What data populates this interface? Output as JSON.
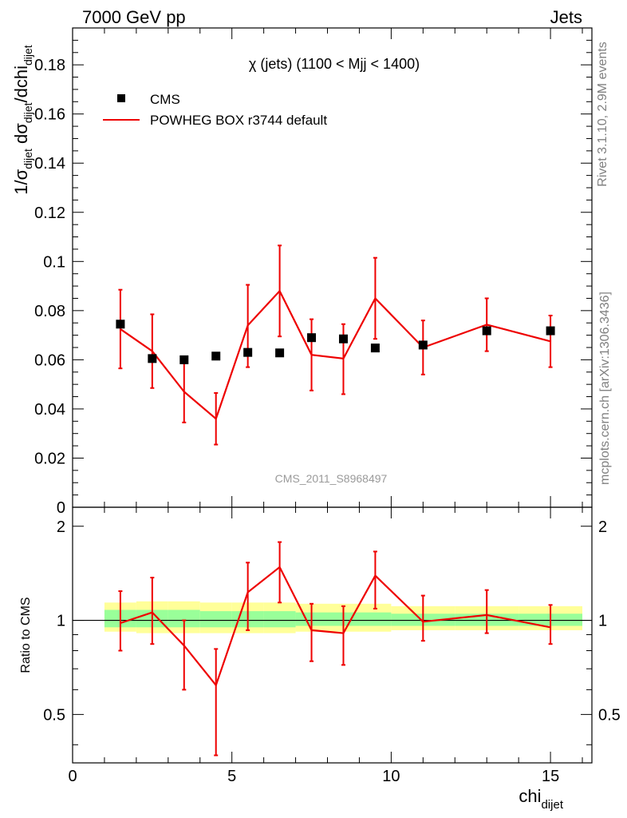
{
  "header": {
    "left": "7000 GeV pp",
    "right": "Jets"
  },
  "side_labels": {
    "rivet": "Rivet 3.1.10,  2.9M events",
    "mcplots": "mcplots.cern.ch [arXiv:1306.3436]"
  },
  "chart_data": {
    "type": "scatter",
    "title": "χ (jets) (1100 < Mjj < 1400)",
    "watermark": "CMS_2011_S8968497",
    "xlabel": "chi",
    "xlabel_sub": "dijet",
    "ylabel_main": {
      "parts": [
        "1/σ",
        "dijet",
        " dσ",
        "dijet",
        "/dchi",
        "dijet"
      ]
    },
    "ylabel_ratio": "Ratio to CMS",
    "xlim": [
      0,
      16.3
    ],
    "ylim_main": [
      0,
      0.195
    ],
    "ylim_ratio": [
      0.35,
      2.3
    ],
    "x_ticks": [
      0,
      5,
      10,
      15
    ],
    "x_tick_labels": [
      "0",
      "5",
      "10",
      "15"
    ],
    "y_ticks_main": [
      0,
      0.02,
      0.04,
      0.06,
      0.08,
      0.1,
      0.12,
      0.14,
      0.16,
      0.18
    ],
    "y_tick_labels_main": [
      "0",
      "0.02",
      "0.04",
      "0.06",
      "0.08",
      "0.1",
      "0.12",
      "0.14",
      "0.16",
      "0.18"
    ],
    "y_ticks_ratio": [
      0.5,
      1,
      2
    ],
    "y_tick_labels_ratio": [
      "0.5",
      "1",
      "2"
    ],
    "legend": {
      "position": "top-left",
      "entries": [
        "CMS",
        "POWHEG BOX r3744 default"
      ]
    },
    "series": [
      {
        "name": "CMS",
        "style": "square-markers",
        "color": "#000000",
        "x": [
          1.5,
          2.5,
          3.5,
          4.5,
          5.5,
          6.5,
          7.5,
          8.5,
          9.5,
          11,
          13,
          15
        ],
        "values": [
          0.0745,
          0.0605,
          0.06,
          0.0615,
          0.063,
          0.0628,
          0.069,
          0.0685,
          0.0648,
          0.066,
          0.0718,
          0.0718
        ]
      },
      {
        "name": "POWHEG BOX r3744 default",
        "style": "line-with-errors",
        "color": "#ee0000",
        "x": [
          1.5,
          2.5,
          3.5,
          4.5,
          5.5,
          6.5,
          7.5,
          8.5,
          9.5,
          11,
          13,
          15
        ],
        "values": [
          0.0725,
          0.0635,
          0.047,
          0.036,
          0.074,
          0.088,
          0.062,
          0.0605,
          0.085,
          0.065,
          0.0743,
          0.0675
        ],
        "err_low": [
          0.0565,
          0.0485,
          0.0345,
          0.0255,
          0.057,
          0.0695,
          0.0475,
          0.046,
          0.0685,
          0.054,
          0.0635,
          0.057
        ],
        "err_high": [
          0.0885,
          0.0785,
          0.06,
          0.0465,
          0.0905,
          0.1065,
          0.0765,
          0.0745,
          0.1015,
          0.076,
          0.085,
          0.078
        ]
      }
    ],
    "ratio": {
      "values": [
        0.98,
        1.06,
        0.83,
        0.62,
        1.23,
        1.48,
        0.93,
        0.91,
        1.39,
        0.99,
        1.04,
        0.95
      ],
      "err_low": [
        0.8,
        0.84,
        0.6,
        0.37,
        0.93,
        1.14,
        0.74,
        0.72,
        1.09,
        0.86,
        0.91,
        0.84
      ],
      "err_high": [
        1.24,
        1.37,
        1.0,
        0.81,
        1.53,
        1.78,
        1.13,
        1.11,
        1.66,
        1.2,
        1.25,
        1.12
      ],
      "bands": [
        {
          "x": [
            1,
            2
          ],
          "yellow": [
            0.92,
            1.14
          ],
          "green": [
            0.95,
            1.08
          ]
        },
        {
          "x": [
            2,
            3
          ],
          "yellow": [
            0.91,
            1.15
          ],
          "green": [
            0.95,
            1.08
          ]
        },
        {
          "x": [
            3,
            4
          ],
          "yellow": [
            0.91,
            1.15
          ],
          "green": [
            0.95,
            1.08
          ]
        },
        {
          "x": [
            4,
            5
          ],
          "yellow": [
            0.91,
            1.14
          ],
          "green": [
            0.95,
            1.07
          ]
        },
        {
          "x": [
            5,
            6
          ],
          "yellow": [
            0.91,
            1.14
          ],
          "green": [
            0.95,
            1.07
          ]
        },
        {
          "x": [
            6,
            7
          ],
          "yellow": [
            0.91,
            1.14
          ],
          "green": [
            0.95,
            1.07
          ]
        },
        {
          "x": [
            7,
            8
          ],
          "yellow": [
            0.92,
            1.13
          ],
          "green": [
            0.96,
            1.06
          ]
        },
        {
          "x": [
            8,
            9
          ],
          "yellow": [
            0.92,
            1.13
          ],
          "green": [
            0.96,
            1.06
          ]
        },
        {
          "x": [
            9,
            10
          ],
          "yellow": [
            0.92,
            1.13
          ],
          "green": [
            0.96,
            1.06
          ]
        },
        {
          "x": [
            10,
            12
          ],
          "yellow": [
            0.93,
            1.11
          ],
          "green": [
            0.96,
            1.05
          ]
        },
        {
          "x": [
            12,
            14
          ],
          "yellow": [
            0.93,
            1.11
          ],
          "green": [
            0.96,
            1.05
          ]
        },
        {
          "x": [
            14,
            16
          ],
          "yellow": [
            0.93,
            1.11
          ],
          "green": [
            0.96,
            1.05
          ]
        }
      ],
      "band_colors": {
        "yellow": "#ffff99",
        "green": "#99ff99"
      }
    }
  }
}
